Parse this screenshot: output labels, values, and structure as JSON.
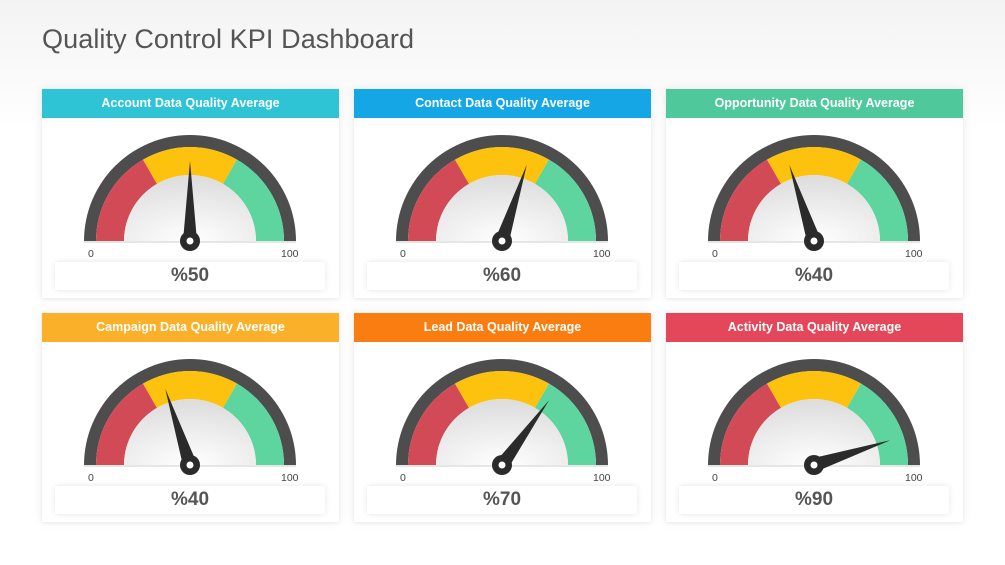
{
  "page_title": "Quality Control KPI Dashboard",
  "colors": {
    "gauge_red": "#d24a55",
    "gauge_yellow": "#fdc20d",
    "gauge_green": "#5ed49e",
    "gauge_rim": "#4d4d4d",
    "needle": "#2b2b2b"
  },
  "chart_data": [
    {
      "type": "gauge",
      "title": "Account Data Quality Average",
      "value": 50,
      "label": "%50",
      "min": 0,
      "max": 100,
      "min_label": "0",
      "max_label": "100",
      "header_color": "#2ec4d6"
    },
    {
      "type": "gauge",
      "title": "Contact Data Quality Average",
      "value": 60,
      "label": "%60",
      "min": 0,
      "max": 100,
      "min_label": "0",
      "max_label": "100",
      "header_color": "#15a6e6"
    },
    {
      "type": "gauge",
      "title": "Opportunity Data Quality Average",
      "value": 40,
      "label": "%40",
      "min": 0,
      "max": 100,
      "min_label": "0",
      "max_label": "100",
      "header_color": "#4fc99c"
    },
    {
      "type": "gauge",
      "title": "Campaign Data Quality Average",
      "value": 40,
      "label": "%40",
      "min": 0,
      "max": 100,
      "min_label": "0",
      "max_label": "100",
      "header_color": "#fbb02a"
    },
    {
      "type": "gauge",
      "title": "Lead Data Quality Average",
      "value": 70,
      "label": "%70",
      "min": 0,
      "max": 100,
      "min_label": "0",
      "max_label": "100",
      "header_color": "#fa7d12"
    },
    {
      "type": "gauge",
      "title": "Activity Data Quality Average",
      "value": 90,
      "label": "%90",
      "min": 0,
      "max": 100,
      "min_label": "0",
      "max_label": "100",
      "header_color": "#e4475a"
    }
  ]
}
